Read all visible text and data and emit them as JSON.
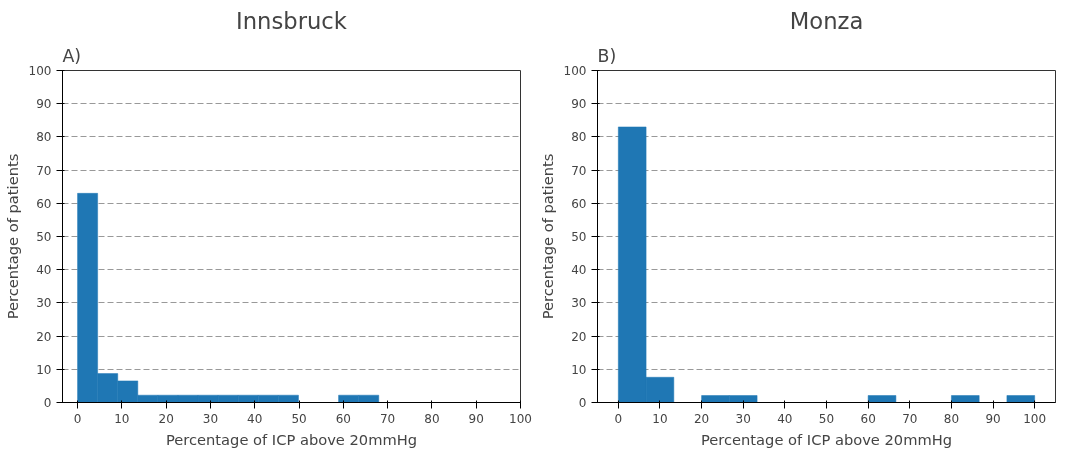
{
  "chart_data": [
    {
      "type": "histogram",
      "title": "Innsbruck",
      "xlabel": "Percentage of ICP above 20mmHg",
      "ylabel": "Percentage of patients",
      "annotations": [
        "A)"
      ],
      "bins": [
        0,
        4.53,
        9.07,
        13.6,
        18.13,
        22.67,
        27.2,
        31.73,
        36.27,
        40.8,
        45.33,
        49.87,
        54.4,
        58.93,
        63.47,
        68
      ],
      "values": [
        63,
        8.7,
        6.5,
        2.2,
        2.2,
        2.2,
        2.2,
        2.2,
        2.2,
        2.2,
        2.2,
        0,
        0,
        2.2,
        2.2
      ],
      "color": "#1f77b4",
      "xlim": [
        -3.4,
        100
      ],
      "ylim": [
        0,
        100
      ],
      "xticks": [
        0,
        10,
        20,
        30,
        40,
        50,
        60,
        70,
        80,
        90,
        100
      ],
      "yticks": [
        0,
        10,
        20,
        30,
        40,
        50,
        60,
        70,
        80,
        90,
        100
      ],
      "grid": "y",
      "line_style": "dashed"
    },
    {
      "type": "histogram",
      "title": "Monza",
      "xlabel": "Percentage of ICP above 20mmHg",
      "ylabel": "Percentage of patients",
      "annotations": [
        "B)"
      ],
      "bins": [
        0,
        6.67,
        13.33,
        20,
        26.67,
        33.33,
        40,
        46.67,
        53.33,
        60,
        66.67,
        73.33,
        80,
        86.67,
        93.33,
        100
      ],
      "values": [
        83,
        7.6,
        0,
        2.1,
        2.1,
        0,
        0,
        0,
        0,
        2.1,
        0,
        0,
        2.1,
        0,
        2.1
      ],
      "color": "#1f77b4",
      "xlim": [
        -5,
        105
      ],
      "ylim": [
        0,
        100
      ],
      "xticks": [
        0,
        10,
        20,
        30,
        40,
        50,
        60,
        70,
        80,
        90,
        100
      ],
      "yticks": [
        0,
        10,
        20,
        30,
        40,
        50,
        60,
        70,
        80,
        90,
        100
      ],
      "grid": "y",
      "line_style": "dashed"
    }
  ]
}
